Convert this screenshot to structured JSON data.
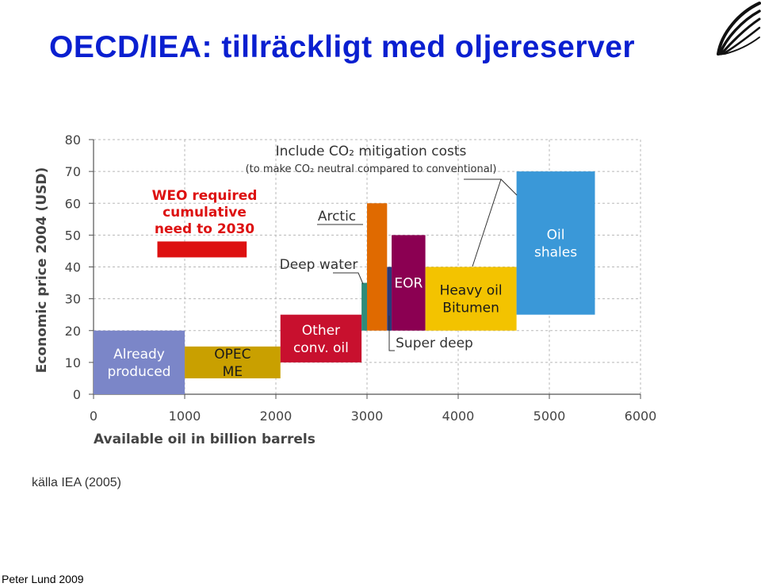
{
  "slide": {
    "title": "OECD/IEA: tillräckligt med oljereserver",
    "source": "källa IEA (2005)",
    "author": "Peter Lund 2009"
  },
  "logo": {
    "icon": "swoosh-logo-icon",
    "color": "#111111"
  },
  "chart_data": {
    "type": "bar",
    "subtype": "supply-cost-curve",
    "xlabel": "Available oil in billion barrels",
    "ylabel": "Economic price 2004 (USD)",
    "xlim": [
      0,
      6000
    ],
    "ylim": [
      0,
      80
    ],
    "xticks": [
      0,
      1000,
      2000,
      3000,
      4000,
      5000,
      6000
    ],
    "yticks": [
      0,
      10,
      20,
      30,
      40,
      50,
      60,
      70,
      80
    ],
    "grid": true,
    "blocks": [
      {
        "id": "already-produced",
        "label_lines": [
          "Already",
          "produced"
        ],
        "x0": 0,
        "x1": 1000,
        "y0": 0,
        "y1": 20,
        "color": "#7b86c8",
        "text_color": "#ffffff"
      },
      {
        "id": "opec-me",
        "label_lines": [
          "OPEC",
          "ME"
        ],
        "x0": 1000,
        "x1": 2050,
        "y0": 5,
        "y1": 15,
        "color": "#c9a000",
        "text_color": "#1a1a1a"
      },
      {
        "id": "other-conv-oil",
        "label_lines": [
          "Other",
          "conv. oil"
        ],
        "x0": 2050,
        "x1": 2940,
        "y0": 10,
        "y1": 25,
        "color": "#c8102e",
        "text_color": "#ffffff"
      },
      {
        "id": "deep-water",
        "label_lines": [],
        "x0": 2940,
        "x1": 3000,
        "y0": 20,
        "y1": 35,
        "color": "#2e8b7a",
        "text_color": "#ffffff"
      },
      {
        "id": "arctic",
        "label_lines": [],
        "x0": 3000,
        "x1": 3220,
        "y0": 20,
        "y1": 60,
        "color": "#e06a00",
        "text_color": "#ffffff"
      },
      {
        "id": "super-deep",
        "label_lines": [],
        "x0": 3220,
        "x1": 3270,
        "y0": 20,
        "y1": 40,
        "color": "#2a3a7a",
        "text_color": "#ffffff"
      },
      {
        "id": "eor",
        "label_lines": [
          "EOR"
        ],
        "x0": 3270,
        "x1": 3640,
        "y0": 20,
        "y1": 50,
        "color": "#8b0052",
        "text_color": "#ffffff"
      },
      {
        "id": "heavy-oil-bitumen",
        "label_lines": [
          "Heavy oil",
          "Bitumen"
        ],
        "x0": 3640,
        "x1": 4640,
        "y0": 20,
        "y1": 40,
        "color": "#f3c300",
        "text_color": "#1a1a1a"
      },
      {
        "id": "oil-shales",
        "label_lines": [
          "Oil",
          "shales"
        ],
        "x0": 4640,
        "x1": 5500,
        "y0": 25,
        "y1": 70,
        "color": "#3a98d8",
        "text_color": "#ffffff"
      }
    ],
    "weo_bar": {
      "label_lines": [
        "WEO required",
        "cumulative",
        "need to 2030"
      ],
      "x0": 700,
      "x1": 1680,
      "y0": 43,
      "y1": 48,
      "color": "#dd1111"
    },
    "annotations": {
      "co2_line1": "Include CO₂ mitigation costs",
      "co2_line2": "(to make CO₂ neutral compared to conventional)",
      "arctic": "Arctic",
      "deep_water": "Deep water",
      "super_deep": "Super deep"
    }
  }
}
